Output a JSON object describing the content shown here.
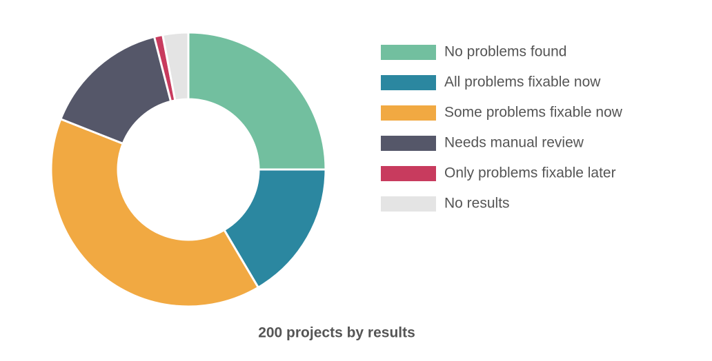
{
  "chart_data": {
    "type": "pie",
    "title": "200 projects by results",
    "categories": [
      "No problems found",
      "All problems fixable now",
      "Some problems fixable now",
      "Needs manual review",
      "Only problems fixable later",
      "No results"
    ],
    "values": [
      50,
      33,
      79,
      30,
      2,
      6
    ],
    "colors": [
      "#72bf9f",
      "#2b87a0",
      "#f1a942",
      "#555769",
      "#c83b5e",
      "#e4e4e4"
    ],
    "donut": true
  }
}
